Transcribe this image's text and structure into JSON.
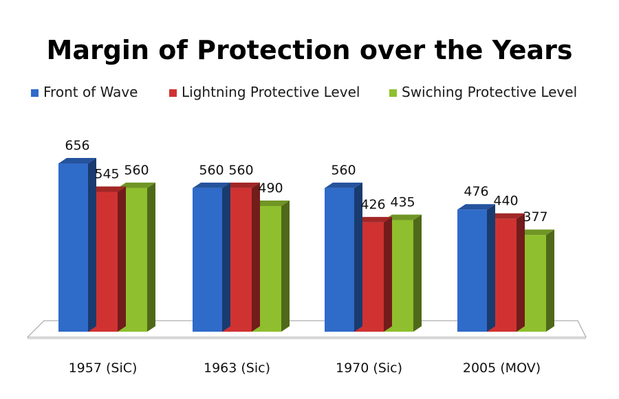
{
  "chart_data": {
    "type": "bar",
    "title": "Margin of Protection over the Years",
    "categories": [
      "1957 (SiC)",
      "1963 (Sic)",
      "1970 (Sic)",
      "2005 (MOV)"
    ],
    "series": [
      {
        "name": "Front of Wave",
        "values": [
          656,
          560,
          560,
          476
        ],
        "color": "#2f6bc9"
      },
      {
        "name": "Lightning Protective Level",
        "values": [
          545,
          560,
          426,
          440
        ],
        "color": "#d03232"
      },
      {
        "name": "Swiching Protective Level",
        "values": [
          560,
          490,
          435,
          377
        ],
        "color": "#8fbf2e"
      }
    ],
    "value_labels": {
      "Front of Wave": [
        "656",
        "560",
        "560",
        "476"
      ],
      "Lightning Protective Level": [
        "545",
        "560",
        "426",
        "440"
      ],
      "Swiching Protective Level": [
        "560",
        "490",
        "435",
        "377"
      ]
    },
    "legend_position": "top",
    "style": "3d-column",
    "grid": false,
    "ylim": [
      0,
      700
    ]
  }
}
